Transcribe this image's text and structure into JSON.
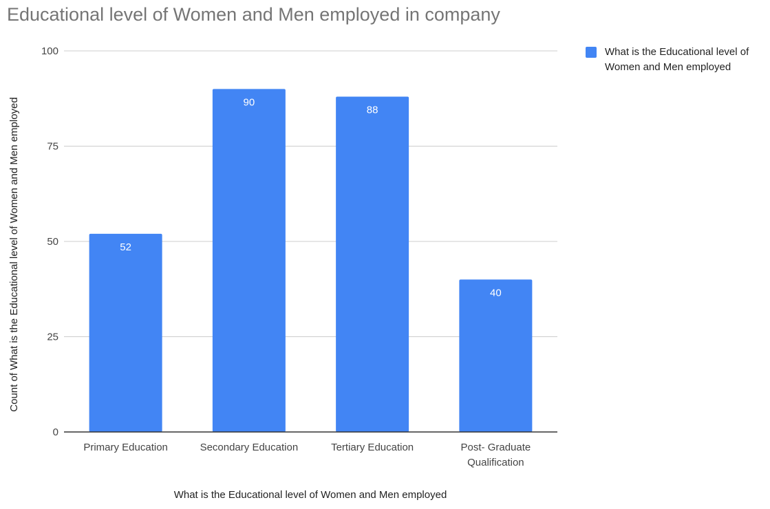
{
  "chart_data": {
    "type": "bar",
    "title": "Educational level of Women and Men employed in company",
    "xlabel": "What is the Educational level of Women and Men employed",
    "ylabel": "Count of What is the Educational level of Women and Men employed",
    "categories": [
      [
        "Primary Education"
      ],
      [
        "Secondary Education"
      ],
      [
        "Tertiary Education"
      ],
      [
        "Post- Graduate",
        "Qualification"
      ]
    ],
    "series": [
      {
        "name": "What is the Educational level of Women and Men employed",
        "legend_lines": [
          "What is the Educational level of",
          "Women and Men employed"
        ],
        "color": "#4285f4",
        "values": [
          52,
          90,
          88,
          40
        ]
      }
    ],
    "ylim": [
      0,
      100
    ],
    "yticks": [
      0,
      25,
      50,
      75,
      100
    ],
    "grid": true,
    "legend_position": "top-right",
    "data_labels": true
  }
}
